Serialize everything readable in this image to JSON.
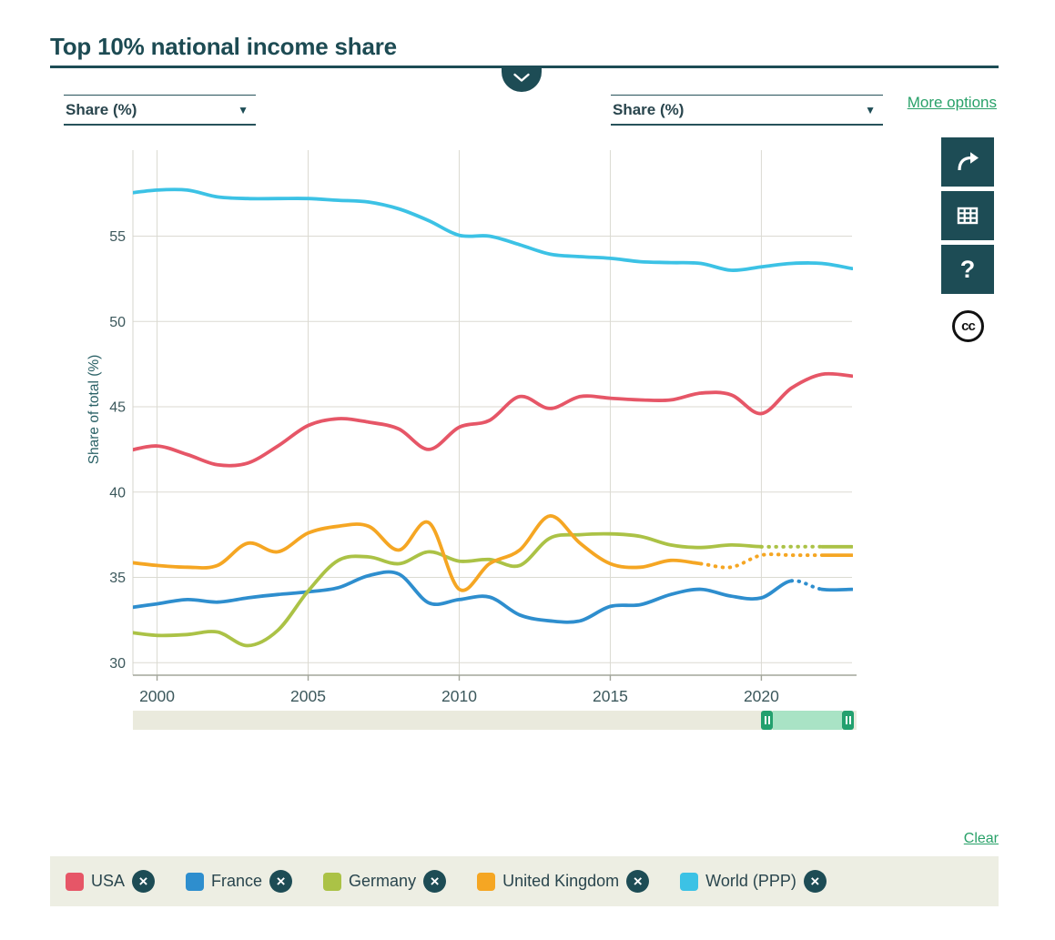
{
  "page": {
    "title": "Top 10% national income share"
  },
  "controls": {
    "left_measure": "Share (%)",
    "right_measure": "Share (%)",
    "dropdown_arrow": "▼",
    "more_options": "More options",
    "clear": "Clear"
  },
  "toolbar": {
    "share_icon": "curved-arrow",
    "table_icon": "grid",
    "help_glyph": "?",
    "cc_label": "cc"
  },
  "chart_data": {
    "type": "line",
    "title": "Top 10% national income share",
    "ylabel": "Share of total (%)",
    "xlabel": "",
    "grid": true,
    "xlim": [
      1999.2,
      2023
    ],
    "ylim": [
      29.3,
      60
    ],
    "x_ticks": [
      2000,
      2005,
      2010,
      2015,
      2020
    ],
    "y_ticks": [
      30,
      35,
      40,
      45,
      50,
      55
    ],
    "x": [
      1999,
      2000,
      2001,
      2002,
      2003,
      2004,
      2005,
      2006,
      2007,
      2008,
      2009,
      2010,
      2011,
      2012,
      2013,
      2014,
      2015,
      2016,
      2017,
      2018,
      2019,
      2020,
      2021,
      2022,
      2023
    ],
    "series": [
      {
        "name": "USA",
        "color": "#e65667",
        "values": [
          42.4,
          42.7,
          42.2,
          41.6,
          41.7,
          42.7,
          43.9,
          44.3,
          44.1,
          43.7,
          42.5,
          43.8,
          44.2,
          45.6,
          44.9,
          45.6,
          45.5,
          45.4,
          45.4,
          45.8,
          45.7,
          44.6,
          46.1,
          46.9,
          46.8
        ],
        "dotted_ranges": []
      },
      {
        "name": "France",
        "color": "#2e8ece",
        "values": [
          33.2,
          33.45,
          33.7,
          33.55,
          33.8,
          34.0,
          34.15,
          34.4,
          35.1,
          35.2,
          33.5,
          33.7,
          33.85,
          32.8,
          32.45,
          32.45,
          33.3,
          33.4,
          34.0,
          34.3,
          33.9,
          33.8,
          34.8,
          34.3,
          34.3
        ],
        "dotted_ranges": [
          [
            2021,
            2022
          ]
        ]
      },
      {
        "name": "Germany",
        "color": "#abc246",
        "values": [
          31.8,
          31.6,
          31.65,
          31.8,
          31.0,
          31.9,
          34.2,
          36.0,
          36.2,
          35.8,
          36.5,
          35.95,
          36.05,
          35.7,
          37.3,
          37.5,
          37.55,
          37.4,
          36.9,
          36.75,
          36.9,
          36.8,
          36.8,
          36.8,
          36.8
        ],
        "dotted_ranges": [
          [
            2020,
            2022
          ]
        ]
      },
      {
        "name": "United Kingdom",
        "color": "#f5a623",
        "values": [
          35.9,
          35.7,
          35.6,
          35.7,
          37.0,
          36.5,
          37.6,
          38.0,
          38.0,
          36.6,
          38.2,
          34.3,
          35.8,
          36.6,
          38.6,
          37.0,
          35.8,
          35.6,
          36.0,
          35.8,
          35.6,
          36.3,
          36.3,
          36.3,
          36.3
        ],
        "dotted_ranges": [
          [
            2018,
            2022
          ]
        ]
      },
      {
        "name": "World (PPP)",
        "color": "#3cc2e5",
        "values": [
          57.5,
          57.7,
          57.7,
          57.3,
          57.2,
          57.2,
          57.2,
          57.1,
          57.0,
          56.6,
          55.9,
          55.05,
          55.0,
          54.5,
          53.95,
          53.8,
          53.7,
          53.5,
          53.45,
          53.4,
          53.0,
          53.2,
          53.4,
          53.4,
          53.1
        ],
        "dotted_ranges": []
      }
    ]
  },
  "slider": {
    "start_year": 2020,
    "end_year": 2023,
    "handle_glyph": "II"
  },
  "legend": {
    "remove_glyph": "×",
    "items": [
      {
        "label": "USA",
        "color": "#e65667"
      },
      {
        "label": "France",
        "color": "#2e8ece"
      },
      {
        "label": "Germany",
        "color": "#abc246"
      },
      {
        "label": "United Kingdom",
        "color": "#f5a623"
      },
      {
        "label": "World (PPP)",
        "color": "#3cc2e5"
      }
    ]
  }
}
